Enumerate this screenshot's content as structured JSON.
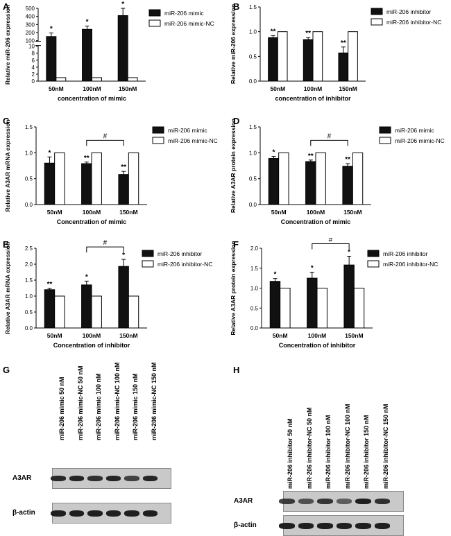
{
  "panel_letters": {
    "A": "A",
    "B": "B",
    "C": "C",
    "D": "D",
    "E": "E",
    "F": "F",
    "G": "G",
    "H": "H"
  },
  "colors": {
    "filled": "#111111",
    "open": "#ffffff",
    "axis": "#000000"
  },
  "chart_data": [
    {
      "id": "A",
      "type": "bar",
      "categories": [
        "50nM",
        "100nM",
        "150nM"
      ],
      "xlabel": "concentration of mimic",
      "ylabel": "Relative miR-206 expression",
      "axis_breaks": [
        {
          "from": 10,
          "to": 100
        }
      ],
      "yticks": [
        0,
        2,
        4,
        6,
        8,
        10,
        100,
        200,
        300,
        400,
        500
      ],
      "series": [
        {
          "name": "miR-206 mimic",
          "fill": "#111111",
          "values": [
            150,
            240,
            410
          ],
          "errors": [
            45,
            40,
            90
          ],
          "annotations": [
            "*",
            "*",
            "*"
          ]
        },
        {
          "name": "miR-206 mimic-NC",
          "fill": "#ffffff",
          "values": [
            1,
            1,
            1
          ],
          "errors": [
            0,
            0,
            0
          ],
          "annotations": [
            "",
            "",
            ""
          ]
        }
      ]
    },
    {
      "id": "B",
      "type": "bar",
      "categories": [
        "50nM",
        "100nM",
        "150nM"
      ],
      "xlabel": "concentration of inhibitor",
      "ylabel": "Relative miR-206 expression",
      "ylim": [
        0,
        1.5
      ],
      "yticks": [
        "0.0",
        "0.5",
        "1.0",
        "1.5"
      ],
      "series": [
        {
          "name": "miR-206 inhibitor",
          "fill": "#111111",
          "values": [
            0.88,
            0.84,
            0.57
          ],
          "errors": [
            0.04,
            0.04,
            0.12
          ],
          "annotations": [
            "**",
            "**",
            "**"
          ]
        },
        {
          "name": "miR-206 inhibitor-NC",
          "fill": "#ffffff",
          "values": [
            1.0,
            1.0,
            1.0
          ],
          "errors": [
            0,
            0,
            0
          ],
          "annotations": [
            "",
            "",
            ""
          ]
        }
      ]
    },
    {
      "id": "C",
      "type": "bar",
      "categories": [
        "50nM",
        "100nM",
        "150nM"
      ],
      "xlabel": "Concentration of mimic",
      "ylabel": "Relative A3AR mRNA expression",
      "ylim": [
        0,
        1.5
      ],
      "yticks": [
        "0.0",
        "0.5",
        "1.0",
        "1.5"
      ],
      "bracket": {
        "from": 1,
        "to": 2,
        "label": "#"
      },
      "series": [
        {
          "name": "miR-206 mimic",
          "fill": "#111111",
          "values": [
            0.8,
            0.79,
            0.58
          ],
          "errors": [
            0.12,
            0.03,
            0.06
          ],
          "annotations": [
            "*",
            "**",
            "**"
          ]
        },
        {
          "name": "miR-206 mimic-NC",
          "fill": "#ffffff",
          "values": [
            1.0,
            1.0,
            1.0
          ],
          "errors": [
            0,
            0,
            0
          ],
          "annotations": [
            "",
            "",
            ""
          ]
        }
      ]
    },
    {
      "id": "D",
      "type": "bar",
      "categories": [
        "50nM",
        "100nM",
        "150nM"
      ],
      "xlabel": "Concentration of mimic",
      "ylabel": "Relative A3AR protein expression",
      "ylim": [
        0,
        1.5
      ],
      "yticks": [
        "0.0",
        "0.5",
        "1.0",
        "1.5"
      ],
      "bracket": {
        "from": 1,
        "to": 2,
        "label": "#"
      },
      "series": [
        {
          "name": "miR-206 mimic",
          "fill": "#111111",
          "values": [
            0.89,
            0.83,
            0.74
          ],
          "errors": [
            0.04,
            0.03,
            0.05
          ],
          "annotations": [
            "*",
            "**",
            "**"
          ]
        },
        {
          "name": "miR-206 mimic-NC",
          "fill": "#ffffff",
          "values": [
            1.0,
            1.0,
            1.0
          ],
          "errors": [
            0,
            0,
            0
          ],
          "annotations": [
            "",
            "",
            ""
          ]
        }
      ]
    },
    {
      "id": "E",
      "type": "bar",
      "categories": [
        "50nM",
        "100nM",
        "150nM"
      ],
      "xlabel": "Concentration of inhibitor",
      "ylabel": "Relative A3AR mRNA expression",
      "ylim": [
        0,
        2.5
      ],
      "yticks": [
        "0.0",
        "0.5",
        "1.0",
        "1.5",
        "2.0",
        "2.5"
      ],
      "bracket": {
        "from": 1,
        "to": 2,
        "label": "#"
      },
      "series": [
        {
          "name": "miR-206 inhibitor",
          "fill": "#111111",
          "values": [
            1.2,
            1.35,
            1.93
          ],
          "errors": [
            0.04,
            0.12,
            0.22
          ],
          "annotations": [
            "**",
            "*",
            "*"
          ]
        },
        {
          "name": "miR-206 inhibitor-NC",
          "fill": "#ffffff",
          "values": [
            1.0,
            1.0,
            1.0
          ],
          "errors": [
            0,
            0,
            0
          ],
          "annotations": [
            "",
            "",
            ""
          ]
        }
      ]
    },
    {
      "id": "F",
      "type": "bar",
      "categories": [
        "50nM",
        "100nM",
        "150nM"
      ],
      "xlabel": "Concentration of inhibitor",
      "ylabel": "Relative A3AR protein expression",
      "ylim": [
        0,
        2.0
      ],
      "yticks": [
        "0.0",
        "0.5",
        "1.0",
        "1.5",
        "2.0"
      ],
      "bracket": {
        "from": 1,
        "to": 2,
        "label": "#"
      },
      "series": [
        {
          "name": "miR-206 inhibitor",
          "fill": "#111111",
          "values": [
            1.17,
            1.25,
            1.58
          ],
          "errors": [
            0.07,
            0.15,
            0.22
          ],
          "annotations": [
            "*",
            "*",
            "*"
          ]
        },
        {
          "name": "miR-206 inhibitor-NC",
          "fill": "#ffffff",
          "values": [
            1.0,
            1.0,
            1.0
          ],
          "errors": [
            0,
            0,
            0
          ],
          "annotations": [
            "",
            "",
            ""
          ]
        }
      ]
    }
  ],
  "blots": {
    "G": {
      "lanes": [
        "miR-206 mimic 50 nM",
        "miR-206 mimic-NC 50 nM",
        "miR-206 mimic 100 nM",
        "miR-206 mimic-NC 100 nM",
        "miR-206 mimic 150 nM",
        "miR-206 mimic-NC 150 nM"
      ],
      "rows": [
        {
          "label": "A3AR",
          "intensity": [
            0.9,
            0.95,
            0.85,
            0.95,
            0.7,
            0.95
          ]
        },
        {
          "label": "β-actin",
          "intensity": [
            1,
            1,
            1,
            1,
            1,
            1
          ]
        }
      ]
    },
    "H": {
      "lanes": [
        "miR-206 inhibitor 50 nM",
        "miR-206 inhibitor-NC 50 nM",
        "miR-206 inhibitor 100 nM",
        "miR-206 inhibitor-NC 100 nM",
        "miR-206 inhibitor 150 nM",
        "miR-206 inhibitor-NC 150 nM"
      ],
      "rows": [
        {
          "label": "A3AR",
          "intensity": [
            0.75,
            0.55,
            0.8,
            0.45,
            1.0,
            0.85
          ]
        },
        {
          "label": "β-actin",
          "intensity": [
            1,
            1,
            1,
            1,
            1,
            1
          ]
        }
      ]
    }
  }
}
